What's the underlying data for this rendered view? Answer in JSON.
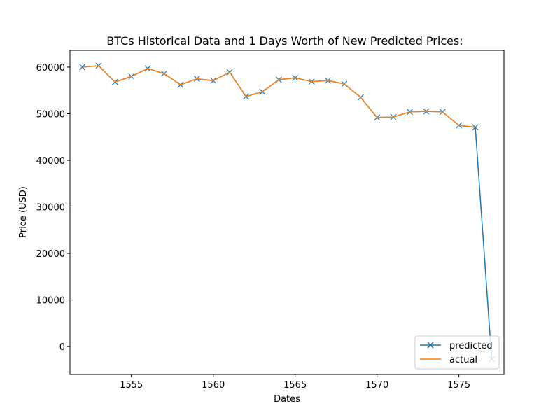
{
  "chart_data": {
    "type": "line",
    "title": "BTCs Historical Data and 1 Days Worth of New Predicted Prices:",
    "xlabel": "Dates",
    "ylabel": "Price (USD)",
    "xlim": [
      1551.25,
      1577.75
    ],
    "ylim": [
      -6000,
      63600
    ],
    "xticks": [
      1555,
      1560,
      1565,
      1570,
      1575
    ],
    "yticks": [
      0,
      10000,
      20000,
      30000,
      40000,
      50000,
      60000
    ],
    "grid": false,
    "legend_position": "lower-right",
    "series": [
      {
        "name": "predicted",
        "color": "#1f77b4",
        "marker": "x",
        "x": [
          1552,
          1553,
          1554,
          1555,
          1556,
          1557,
          1558,
          1559,
          1560,
          1561,
          1562,
          1563,
          1564,
          1565,
          1566,
          1567,
          1568,
          1569,
          1570,
          1571,
          1572,
          1573,
          1574,
          1575,
          1576,
          1577
        ],
        "y": [
          60000,
          60300,
          56800,
          58000,
          59700,
          58600,
          56200,
          57500,
          57100,
          58900,
          53700,
          54700,
          57300,
          57700,
          56900,
          57100,
          56400,
          53500,
          49200,
          49300,
          50400,
          50500,
          50400,
          47500,
          47100,
          -2700
        ]
      },
      {
        "name": "actual",
        "color": "#ff7f0e",
        "x": [
          1552,
          1553,
          1554,
          1555,
          1556,
          1557,
          1558,
          1559,
          1560,
          1561,
          1562,
          1563,
          1564,
          1565,
          1566,
          1567,
          1568,
          1569,
          1570,
          1571,
          1572,
          1573,
          1574,
          1575,
          1576
        ],
        "y": [
          60000,
          60300,
          56800,
          58000,
          59700,
          58600,
          56200,
          57500,
          57100,
          58900,
          53700,
          54700,
          57300,
          57700,
          56900,
          57100,
          56400,
          53500,
          49200,
          49300,
          50400,
          50500,
          50400,
          47500,
          47100
        ]
      }
    ]
  }
}
